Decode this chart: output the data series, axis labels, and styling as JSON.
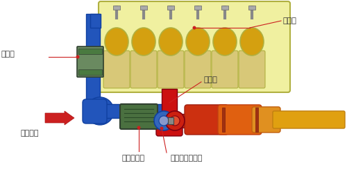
{
  "bg_color": "#f5f5f5",
  "labels": {
    "engine": "发动机",
    "intercooler": "中冷器",
    "exhaust_pipe": "排气管",
    "air_filter": "空气滤清器",
    "turbocharger": "废气涡轮增压器",
    "ambient_air": "环境空气"
  },
  "colors": {
    "engine_body": "#f0f0a0",
    "engine_border": "#b0b040",
    "cylinder": "#d4a010",
    "pipe_blue": "#2255bb",
    "pipe_blue_edge": "#1040a0",
    "pipe_red": "#cc1010",
    "intercooler_green": "#4a7a40",
    "air_filter_green": "#4a7040",
    "arrow_red": "#cc2020",
    "ann_line": "#cc2020",
    "muffler_red": "#cc2010",
    "muffler_orange": "#e06010",
    "muffler_amber": "#e08818",
    "muffler_yellow": "#e0a010",
    "turbo_blue": "#3366bb",
    "turbo_red": "#cc2010",
    "white": "#ffffff",
    "gray_inj": "#909090"
  },
  "figure_bg": "#ffffff"
}
